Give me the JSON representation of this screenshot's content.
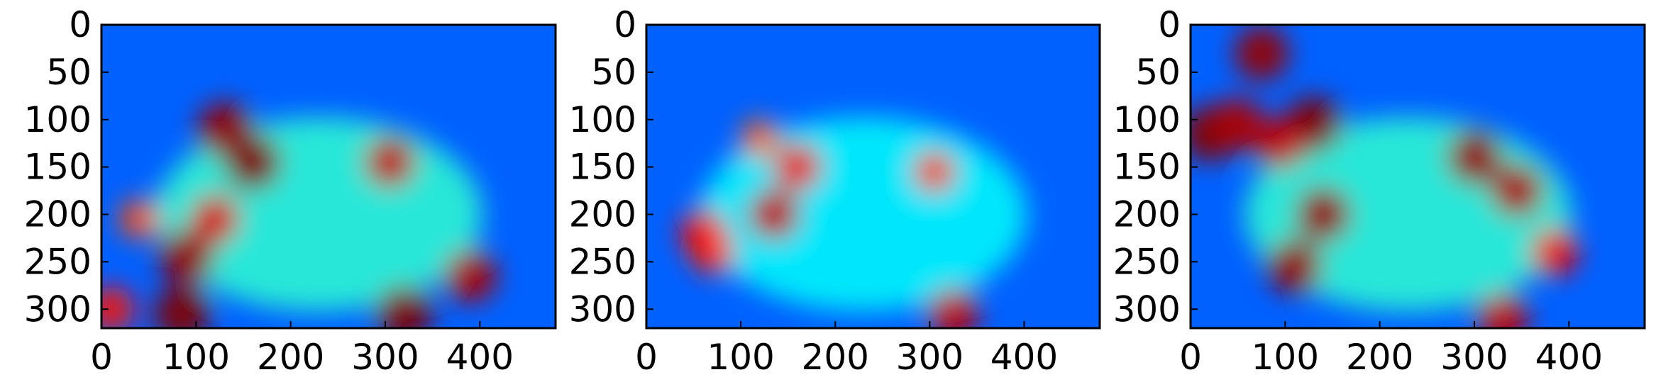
{
  "chart_data": [
    {
      "type": "heatmap",
      "colormap": "jet",
      "colormap_colors": [
        "#00007f",
        "#0000ff",
        "#00ffff",
        "#ffff00",
        "#ff0000",
        "#7f0000"
      ],
      "xlim": [
        0,
        480
      ],
      "ylim": [
        320,
        0
      ],
      "x_ticks": [
        "0",
        "100",
        "200",
        "300",
        "400"
      ],
      "y_ticks": [
        "0",
        "50",
        "100",
        "150",
        "200",
        "250",
        "300"
      ],
      "grid": false,
      "hotspots": [
        {
          "x": 130,
          "y": 110,
          "intensity": 0.95
        },
        {
          "x": 160,
          "y": 145,
          "intensity": 1.0
        },
        {
          "x": 90,
          "y": 245,
          "intensity": 0.95
        },
        {
          "x": 120,
          "y": 205,
          "intensity": 0.8
        },
        {
          "x": 85,
          "y": 305,
          "intensity": 1.0
        },
        {
          "x": 320,
          "y": 305,
          "intensity": 1.0
        },
        {
          "x": 305,
          "y": 145,
          "intensity": 0.85
        },
        {
          "x": 390,
          "y": 265,
          "intensity": 0.9
        },
        {
          "x": 10,
          "y": 300,
          "intensity": 0.7
        },
        {
          "x": 40,
          "y": 205,
          "intensity": 0.55
        }
      ]
    },
    {
      "type": "heatmap",
      "colormap": "jet",
      "colormap_colors": [
        "#00007f",
        "#0000ff",
        "#00ffff",
        "#ffff00",
        "#ff0000",
        "#7f0000"
      ],
      "xlim": [
        0,
        480
      ],
      "ylim": [
        320,
        0
      ],
      "x_ticks": [
        "0",
        "100",
        "200",
        "300",
        "400"
      ],
      "y_ticks": [
        "0",
        "50",
        "100",
        "150",
        "200",
        "250",
        "300"
      ],
      "grid": false,
      "hotspots": [
        {
          "x": 135,
          "y": 200,
          "intensity": 0.85
        },
        {
          "x": 160,
          "y": 150,
          "intensity": 0.75
        },
        {
          "x": 60,
          "y": 220,
          "intensity": 0.75
        },
        {
          "x": 70,
          "y": 240,
          "intensity": 0.65
        },
        {
          "x": 325,
          "y": 305,
          "intensity": 0.85
        },
        {
          "x": 305,
          "y": 155,
          "intensity": 0.6
        },
        {
          "x": 120,
          "y": 120,
          "intensity": 0.5
        }
      ]
    },
    {
      "type": "heatmap",
      "colormap": "jet",
      "colormap_colors": [
        "#00007f",
        "#0000ff",
        "#00ffff",
        "#ffff00",
        "#ff0000",
        "#7f0000"
      ],
      "xlim": [
        0,
        480
      ],
      "ylim": [
        320,
        0
      ],
      "x_ticks": [
        "0",
        "100",
        "200",
        "300",
        "400"
      ],
      "y_ticks": [
        "0",
        "50",
        "100",
        "150",
        "200",
        "250",
        "300"
      ],
      "grid": false,
      "hotspots": [
        {
          "x": 20,
          "y": 115,
          "intensity": 1.0
        },
        {
          "x": 50,
          "y": 105,
          "intensity": 0.9
        },
        {
          "x": 130,
          "y": 105,
          "intensity": 1.0
        },
        {
          "x": 95,
          "y": 125,
          "intensity": 0.85
        },
        {
          "x": 140,
          "y": 200,
          "intensity": 0.95
        },
        {
          "x": 110,
          "y": 255,
          "intensity": 0.95
        },
        {
          "x": 75,
          "y": 30,
          "intensity": 0.95
        },
        {
          "x": 300,
          "y": 140,
          "intensity": 0.95
        },
        {
          "x": 345,
          "y": 175,
          "intensity": 0.9
        },
        {
          "x": 330,
          "y": 310,
          "intensity": 0.85
        },
        {
          "x": 385,
          "y": 240,
          "intensity": 0.75
        }
      ]
    }
  ]
}
